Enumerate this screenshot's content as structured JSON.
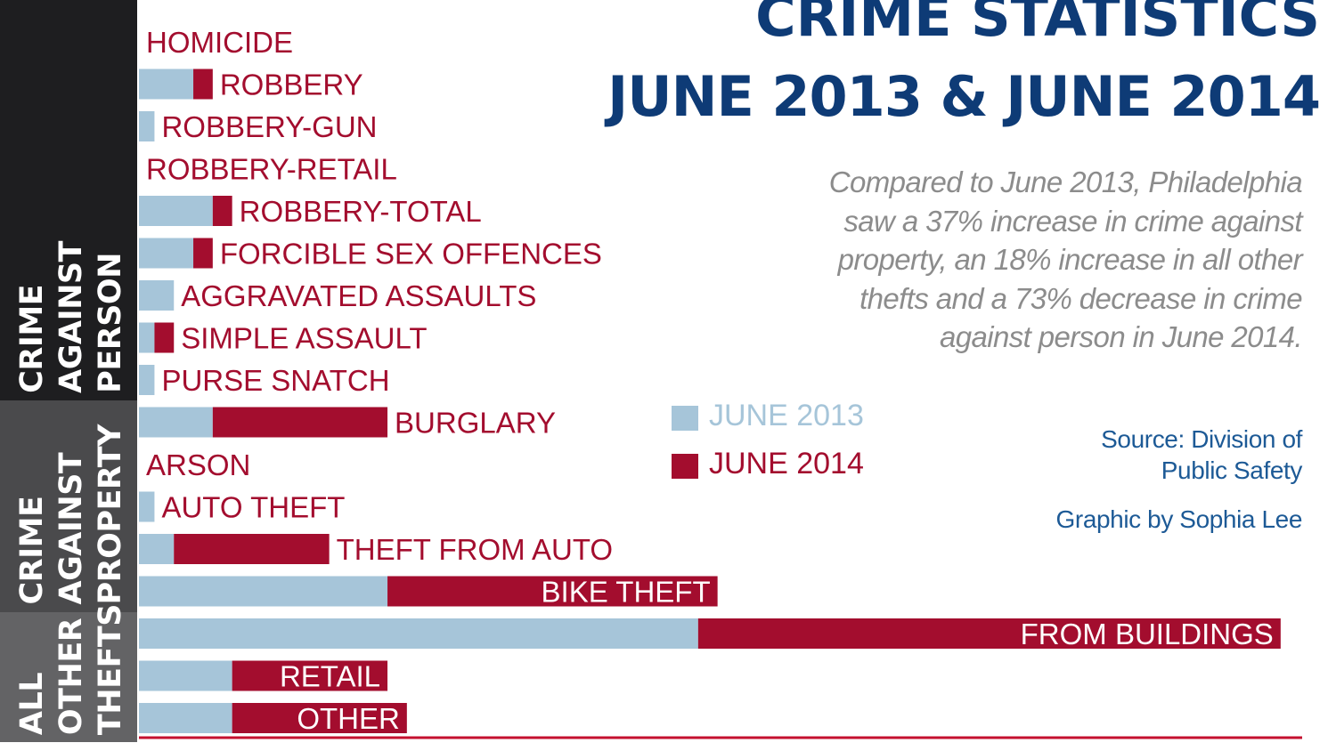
{
  "title_line1": "CRIME STATISTICS",
  "title_line2": "JUNE 2013 & JUNE 2014",
  "summary": "Compared to June 2013, Philadelphia saw a 37% increase in crime against property, an 18% increase in all other thefts and a 73% decrease in crime against person in June 2014.",
  "source": "Source: Division of\nPublic Safety",
  "graphic_by": "Graphic by Sophia Lee",
  "groups": {
    "person": "CRIME\nAGAINST\nPERSON",
    "property": "CRIME\nAGAINST\nPROPERTY",
    "other": "ALL\nOTHER\nTHEFTS"
  },
  "colors": {
    "june2013": "#a6c5d9",
    "june2014": "#a30d2e",
    "label": "#a30d2e",
    "title": "#0e3b76",
    "summary": "#8c8c8c",
    "credit": "#1d5a96"
  },
  "chart_data": {
    "type": "bar",
    "orientation": "horizontal",
    "stacked": true,
    "categories": [
      "HOMICIDE",
      "ROBBERY",
      "ROBBERY-GUN",
      "ROBBERY-RETAIL",
      "ROBBERY-TOTAL",
      "FORCIBLE SEX OFFENCES",
      "AGGRAVATED ASSAULTS",
      "SIMPLE ASSAULT",
      "PURSE SNATCH",
      "BURGLARY",
      "ARSON",
      "AUTO THEFT",
      "THEFT FROM AUTO",
      "BIKE THEFT",
      "FROM BUILDINGS",
      "RETAIL",
      "OTHER"
    ],
    "groups": [
      {
        "name": "CRIME AGAINST PERSON",
        "categories": [
          "HOMICIDE",
          "ROBBERY",
          "ROBBERY-GUN",
          "ROBBERY-RETAIL",
          "ROBBERY-TOTAL",
          "FORCIBLE SEX OFFENCES",
          "AGGRAVATED ASSAULTS",
          "SIMPLE ASSAULT",
          "PURSE SNATCH"
        ]
      },
      {
        "name": "CRIME AGAINST PROPERTY",
        "categories": [
          "BURGLARY",
          "ARSON",
          "AUTO THEFT",
          "THEFT FROM AUTO",
          "BIKE THEFT"
        ]
      },
      {
        "name": "ALL OTHER THEFTS",
        "categories": [
          "FROM BUILDINGS",
          "RETAIL",
          "OTHER"
        ]
      }
    ],
    "series": [
      {
        "name": "JUNE 2013",
        "values": [
          0,
          2.8,
          0.8,
          0,
          3.8,
          2.8,
          1.8,
          0.8,
          0.8,
          3.8,
          0,
          0.8,
          1.8,
          12.8,
          28.8,
          4.8,
          4.8
        ]
      },
      {
        "name": "JUNE 2014",
        "values": [
          0,
          1,
          0,
          0,
          1,
          1,
          0,
          1,
          0,
          9,
          0,
          0,
          8,
          17,
          30,
          8,
          9
        ]
      }
    ],
    "inside_labels": [
      "BIKE THEFT",
      "FROM BUILDINGS",
      "RETAIL",
      "OTHER"
    ],
    "xlim": [
      0,
      60
    ],
    "grid": false,
    "legend": "center-right"
  }
}
